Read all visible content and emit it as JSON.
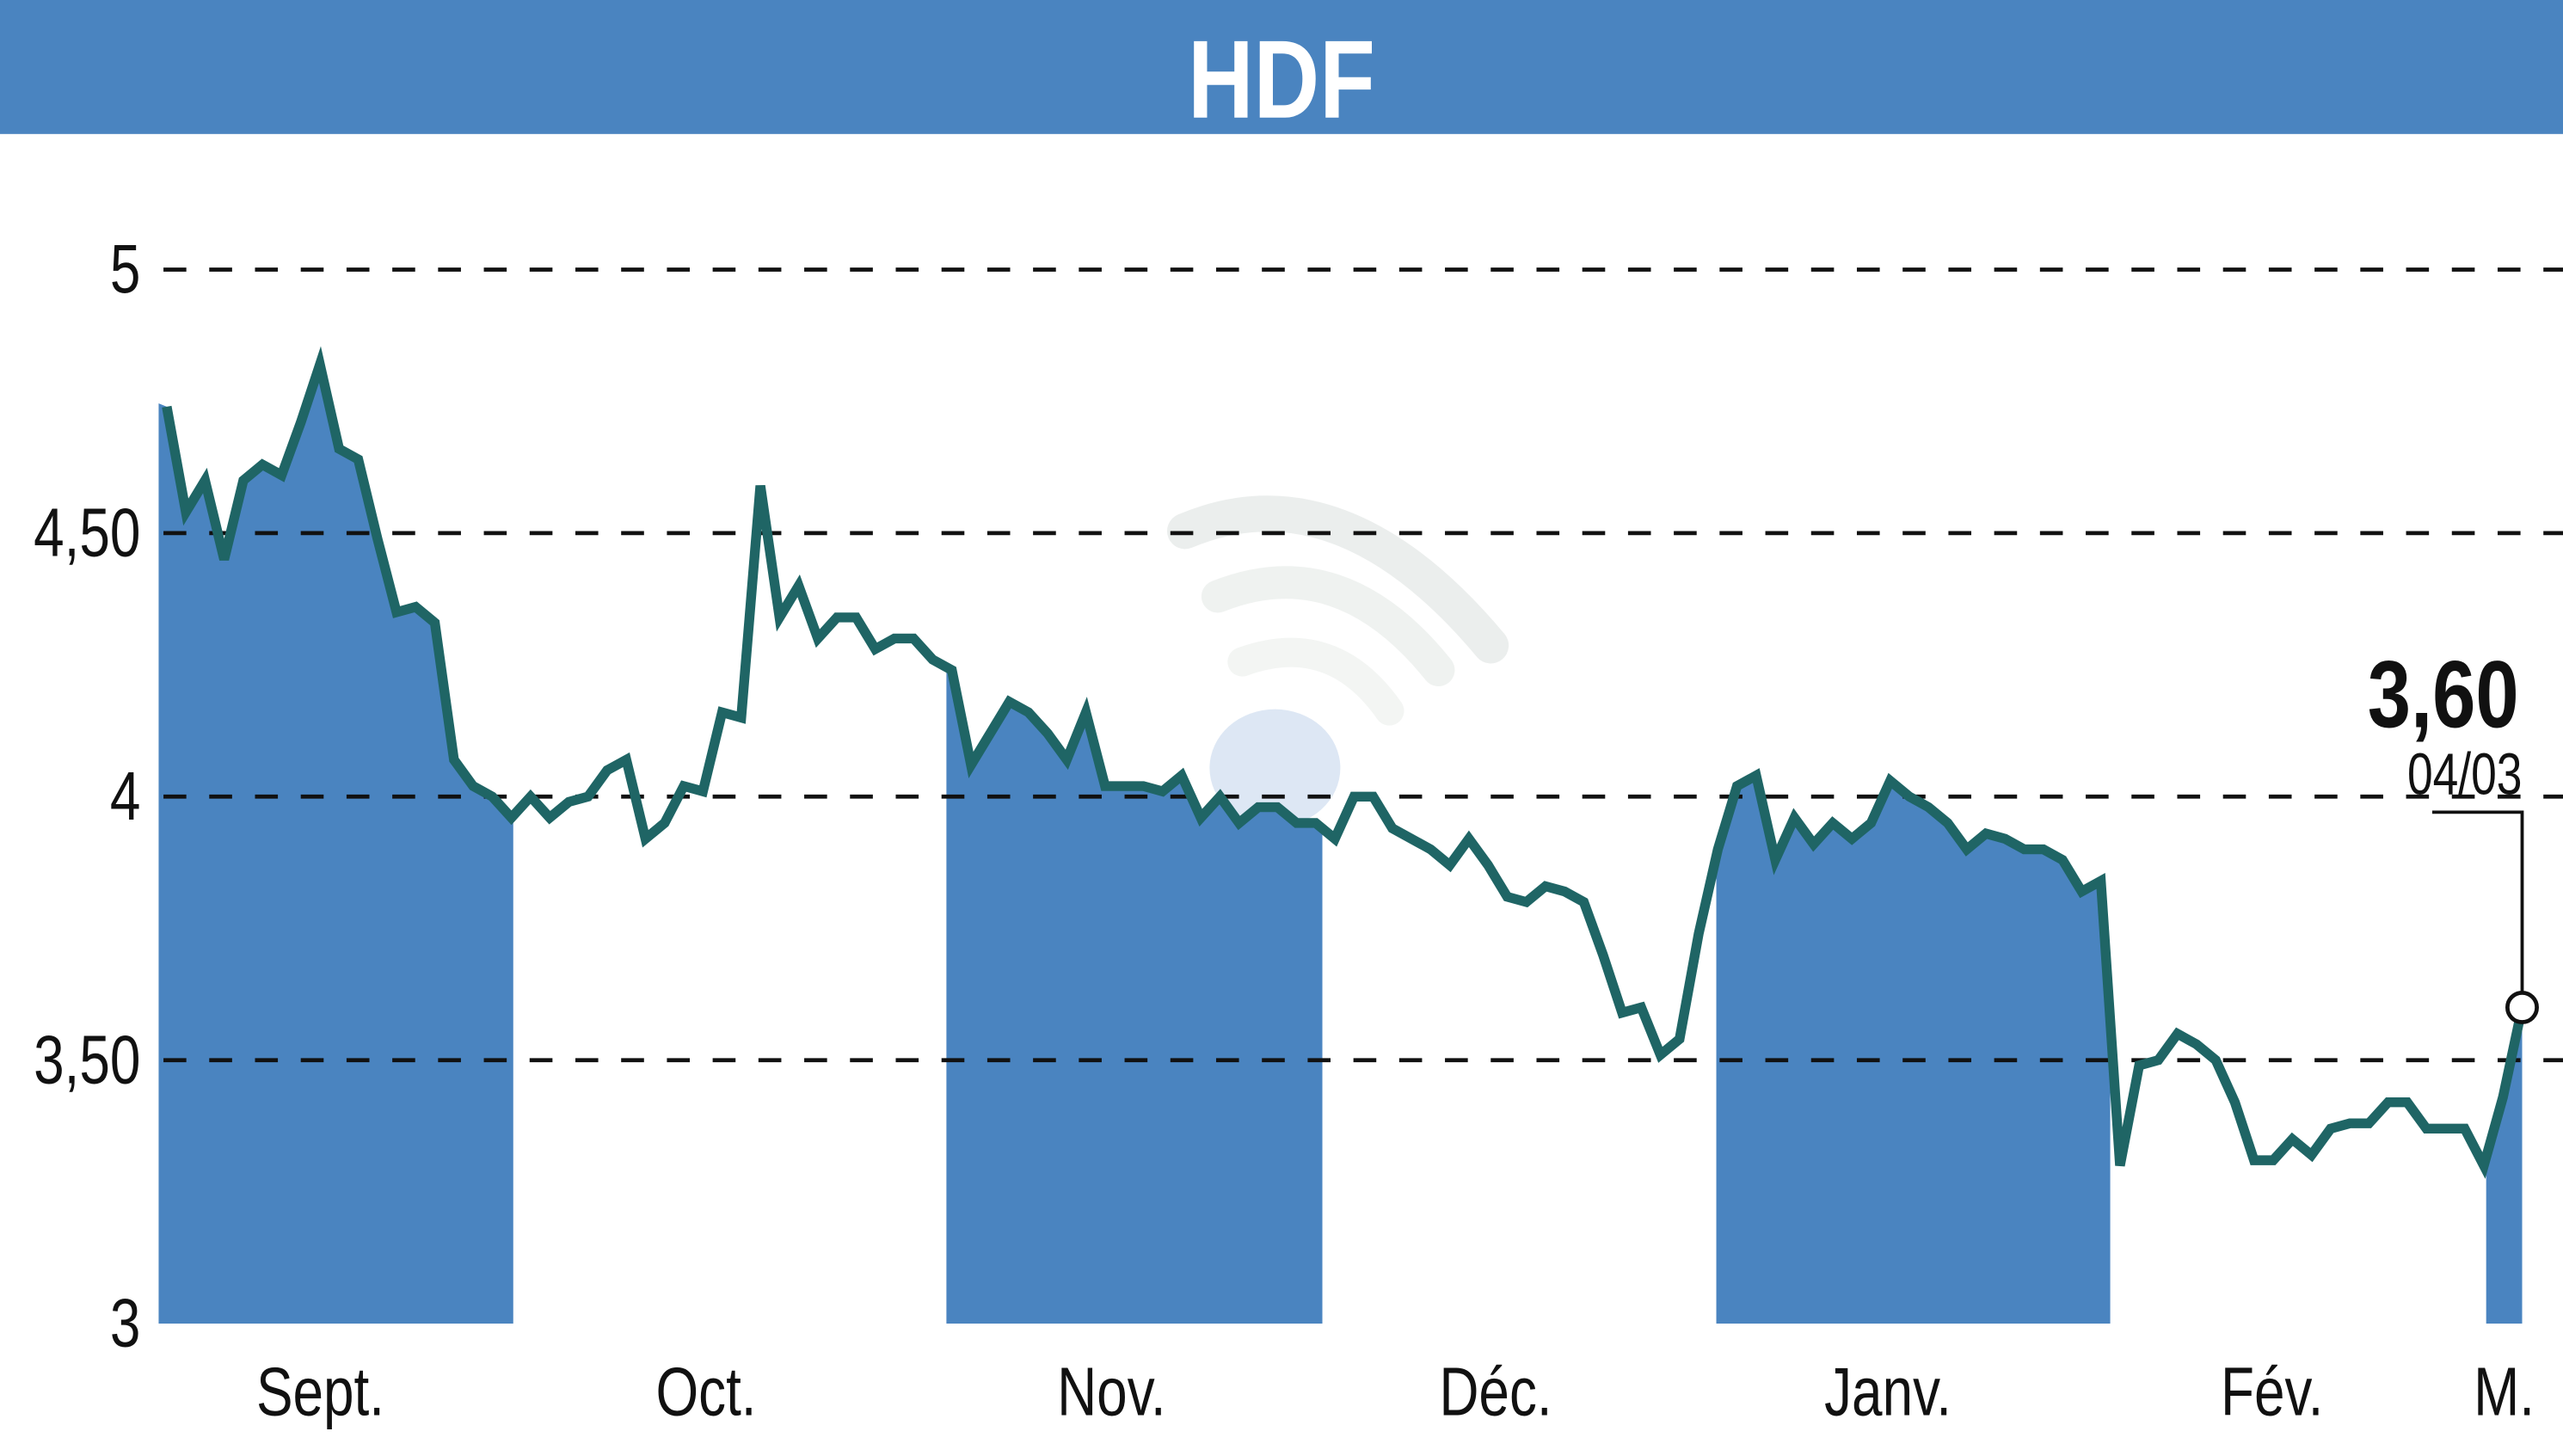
{
  "chart_data": {
    "type": "area",
    "title": "HDF",
    "xlabel": "",
    "ylabel": "",
    "ylim": [
      3,
      5
    ],
    "y_ticks": [
      {
        "value": 5,
        "label": "5"
      },
      {
        "value": 4.5,
        "label": "4,50"
      },
      {
        "value": 4,
        "label": "4"
      },
      {
        "value": 3.5,
        "label": "3,50"
      },
      {
        "value": 3,
        "label": "3"
      }
    ],
    "grid": "horizontal dashed",
    "months": [
      {
        "label": "Sept.",
        "shaded": true
      },
      {
        "label": "Oct.",
        "shaded": false
      },
      {
        "label": "Nov.",
        "shaded": true
      },
      {
        "label": "Déc.",
        "shaded": false
      },
      {
        "label": "Janv.",
        "shaded": true
      },
      {
        "label": "Fév.",
        "shaded": false
      },
      {
        "label": "M.",
        "shaded": true
      }
    ],
    "series": [
      {
        "values": [
          4.74,
          4.54,
          4.6,
          4.45,
          4.6,
          4.63,
          4.61,
          4.71,
          4.82,
          4.66,
          4.64,
          4.49,
          4.35,
          4.36,
          4.33,
          4.07,
          4.02,
          4.0,
          3.96,
          4.0,
          3.96,
          3.99,
          4.0,
          4.05,
          4.07,
          3.92,
          3.95,
          4.02,
          4.01,
          4.16,
          4.15,
          4.59,
          4.34,
          4.4,
          4.3,
          4.34,
          4.34,
          4.28,
          4.3,
          4.3,
          4.26,
          4.24,
          4.06,
          4.12,
          4.18,
          4.16,
          4.12,
          4.07,
          4.16,
          4.02,
          4.02,
          4.02,
          4.01,
          4.04,
          3.96,
          4.0,
          3.95,
          3.98,
          3.98,
          3.95,
          3.95,
          3.92,
          4.0,
          4.0,
          3.94,
          3.92,
          3.9,
          3.87,
          3.92,
          3.87,
          3.81,
          3.8,
          3.83,
          3.82,
          3.8,
          3.7,
          3.59,
          3.6,
          3.51,
          3.54,
          3.74,
          3.9,
          4.02,
          4.04,
          3.88,
          3.96,
          3.91,
          3.95,
          3.92,
          3.95,
          4.03,
          4.0,
          3.98,
          3.95,
          3.9,
          3.93,
          3.92,
          3.9,
          3.9,
          3.88,
          3.82,
          3.84,
          3.3,
          3.49,
          3.5,
          3.55,
          3.53,
          3.5,
          3.42,
          3.31,
          3.31,
          3.35,
          3.32,
          3.37,
          3.38,
          3.38,
          3.42,
          3.42,
          3.37,
          3.37,
          3.37,
          3.3,
          3.43,
          3.6
        ]
      }
    ],
    "last_value": {
      "label": "3,60",
      "date": "04/03"
    },
    "colors": {
      "header": "#4a84c0",
      "fill": "#4a84c0",
      "line": "#1f6565",
      "grid": "#111111"
    }
  }
}
